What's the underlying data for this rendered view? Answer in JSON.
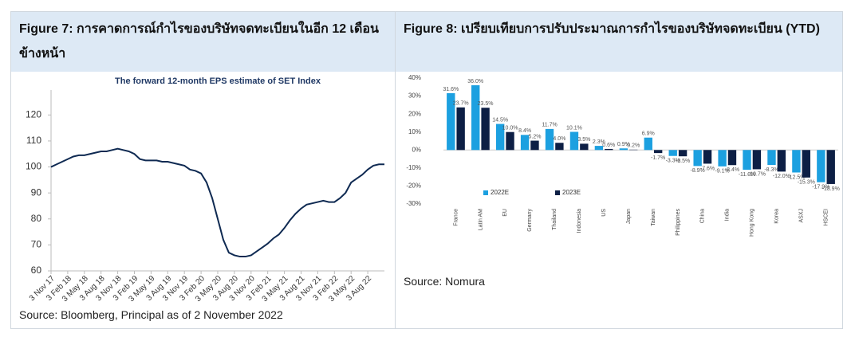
{
  "figures": [
    {
      "heading": "Figure 7: การคาดการณ์กำไรของบริษัทจดทะเบียนในอีก 12 เดือนข้างหน้า",
      "source": "Source: Bloomberg, Principal as of 2 November 2022"
    },
    {
      "heading": "Figure 8: เปรียบเทียบการปรับประมาณการกำไรของบริษัทจดทะเบียน (YTD)",
      "source": "Source: Nomura"
    }
  ],
  "chart_data": [
    {
      "type": "line",
      "title": "The forward 12-month EPS estimate of SET Index",
      "color": "#0f2a52",
      "categories": [
        "3 Nov 17",
        null,
        null,
        "3 Feb 18",
        null,
        null,
        "3 May 18",
        null,
        null,
        "3 Aug 18",
        null,
        null,
        "3 Nov 18",
        null,
        null,
        "3 Feb 19",
        null,
        null,
        "3 May 19",
        null,
        null,
        "3 Aug 19",
        null,
        null,
        "3 Nov 19",
        null,
        null,
        "3 Feb 20",
        null,
        null,
        "3 May 20",
        null,
        null,
        "3 Aug 20",
        null,
        null,
        "3 Nov 20",
        null,
        null,
        "3 Feb 21",
        null,
        null,
        "3 May 21",
        null,
        null,
        "3 Aug 21",
        null,
        null,
        "3 Nov 21",
        null,
        null,
        "3 Feb 22",
        null,
        null,
        "3 May 22",
        null,
        null,
        "3 Aug 22",
        null,
        null,
        null
      ],
      "values": [
        100,
        101,
        102,
        103,
        104,
        104.5,
        104.5,
        105,
        105.5,
        106,
        106,
        106.5,
        107,
        106.5,
        106,
        105,
        103,
        102.5,
        102.5,
        102.5,
        102,
        102,
        101.5,
        101,
        100.5,
        99,
        98.5,
        97.5,
        94,
        88,
        80,
        72,
        67,
        66,
        65.5,
        65.5,
        66,
        67.5,
        69,
        70.5,
        72.5,
        74,
        76.5,
        79.5,
        82,
        84,
        85.5,
        86,
        86.5,
        87,
        86.5,
        86.5,
        88,
        90,
        94,
        95.5,
        97,
        99,
        100.5,
        101,
        101
      ],
      "ylim": [
        60,
        125
      ],
      "yticks": [
        60,
        70,
        80,
        90,
        100,
        110,
        120
      ]
    },
    {
      "type": "bar",
      "categories": [
        "France",
        "Latin AM",
        "EU",
        "Germany",
        "Thailand",
        "Indonesia",
        "US",
        "Japan",
        "Taiwan",
        "Philippines",
        "China",
        "India",
        "Hong Kong",
        "Korea",
        "ASXJ",
        "HSCEI"
      ],
      "series": [
        {
          "name": "2022E",
          "color": "#1ca0e0",
          "values": [
            31.6,
            36.0,
            14.5,
            8.4,
            11.7,
            10.1,
            2.3,
            0.9,
            6.9,
            -3.3,
            -8.9,
            -9.1,
            -11.0,
            -8.3,
            -12.5,
            -17.9
          ],
          "value_labels": [
            "31.6%",
            "36.0%",
            "14.5%",
            "8.4%",
            "11.7%",
            "10.1%",
            "2.3%",
            "0.9%",
            "6.9%",
            "-3.3%",
            "-8.9%",
            "-9.1%",
            "-11.0%",
            "-8.3%",
            "-12.5%",
            "-17.9%"
          ]
        },
        {
          "name": "2023E",
          "color": "#0d1f45",
          "values": [
            23.7,
            23.5,
            10.0,
            5.2,
            4.0,
            3.5,
            0.6,
            0.2,
            -1.7,
            -3.5,
            -7.6,
            -8.4,
            -10.7,
            -12.0,
            -15.3,
            -18.9
          ],
          "value_labels": [
            "23.7%",
            "23.5%",
            "10.0%",
            "5.2%",
            "4.0%",
            "3.5%",
            "0.6%",
            "0.2%",
            "-1.7%",
            "-3.5%",
            "-7.6%",
            "-8.4%",
            "-10.7%",
            "-12.0%",
            "-15.3%",
            "-18.9%"
          ]
        }
      ],
      "ylim": [
        -30,
        40
      ],
      "yticks": [
        {
          "value": -30,
          "label": "-30%"
        },
        {
          "value": -20,
          "label": "-20%"
        },
        {
          "value": -10,
          "label": "-10%"
        },
        {
          "value": 0,
          "label": "0%"
        },
        {
          "value": 10,
          "label": "10%"
        },
        {
          "value": 20,
          "label": "20%"
        },
        {
          "value": 30,
          "label": "30%"
        },
        {
          "value": 40,
          "label": "40%"
        }
      ],
      "legend": "lower-left"
    }
  ]
}
